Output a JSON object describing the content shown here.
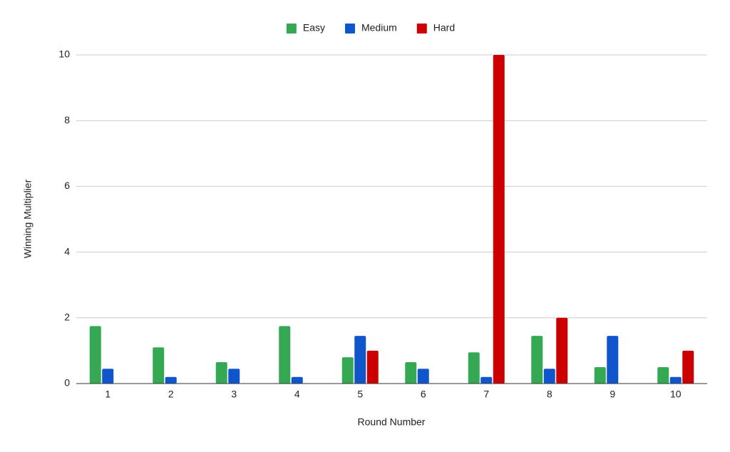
{
  "chart_data": {
    "type": "bar",
    "x_label": "Round Number",
    "y_label": "Winning Multiplier",
    "categories": [
      "1",
      "2",
      "3",
      "4",
      "5",
      "6",
      "7",
      "8",
      "9",
      "10"
    ],
    "series": [
      {
        "name": "Easy",
        "color": "#34a853",
        "values": [
          1.75,
          1.1,
          0.65,
          1.75,
          0.8,
          0.65,
          0.95,
          1.45,
          0.5,
          0.5
        ]
      },
      {
        "name": "Medium",
        "color": "#1155cc",
        "values": [
          0.45,
          0.2,
          0.45,
          0.2,
          1.45,
          0.45,
          0.2,
          0.45,
          1.45,
          0.2
        ]
      },
      {
        "name": "Hard",
        "color": "#cc0000",
        "values": [
          null,
          null,
          null,
          null,
          1,
          null,
          10,
          2,
          null,
          1
        ]
      }
    ],
    "ylim": [
      0,
      10
    ],
    "yticks": [
      0,
      2,
      4,
      6,
      8,
      10
    ],
    "grid": true,
    "legend": "top"
  }
}
